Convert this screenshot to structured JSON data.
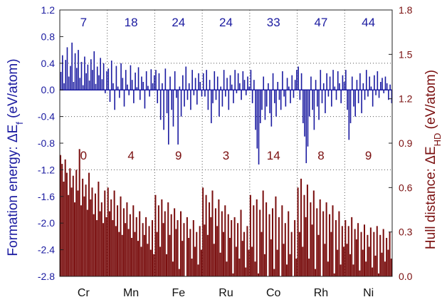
{
  "chart_data": {
    "type": "bar",
    "categories": [
      "Cr",
      "Mn",
      "Fe",
      "Ru",
      "Co",
      "Rh",
      "Ni"
    ],
    "top_counts": [
      "7",
      "18",
      "24",
      "24",
      "33",
      "47",
      "44"
    ],
    "bottom_counts": [
      "0",
      "4",
      "9",
      "3",
      "14",
      "8",
      "9"
    ],
    "left_axis": {
      "label_prefix": "Formation energy: ",
      "label_symbol": "ΔE",
      "label_sub": "f",
      "label_suffix": " (eV/atom)",
      "ylim": [
        -2.8,
        1.2
      ],
      "ticks": [
        "1.2",
        "0.8",
        "0.4",
        "0.0",
        "-0.4",
        "-0.8",
        "-1.2",
        "-1.6",
        "-2.0",
        "-2.4",
        "-2.8"
      ],
      "color": "#1a1aa0"
    },
    "right_axis": {
      "label_prefix": "Hull distance: ",
      "label_symbol": "ΔE",
      "label_sub": "HD",
      "label_suffix": " (eV/atom)",
      "ylim": [
        0.0,
        1.8
      ],
      "ticks": [
        "1.8",
        "1.5",
        "1.2",
        "0.9",
        "0.6",
        "0.3",
        "0.0"
      ],
      "color": "#7a0f0f"
    },
    "series": [
      {
        "axis": "left",
        "color": "#1a1aa0",
        "values_by_category": {
          "Cr": [
            0.27,
            0.52,
            0.1,
            0.45,
            0.64,
            0.2,
            0.36,
            0.71,
            0.12,
            0.55,
            0.33,
            0.6,
            0.18,
            0.42,
            0.07,
            0.5,
            0.25,
            0.38,
            0.14,
            0.46,
            0.3,
            0.58,
            0.09,
            0.35,
            0.22,
            0.48,
            0.16,
            0.4,
            -0.05,
            0.28
          ],
          "Mn": [
            0.32,
            -0.18,
            0.44,
            0.1,
            -0.3,
            0.36,
            0.05,
            -0.12,
            0.4,
            0.18,
            -0.25,
            0.3,
            0.08,
            -0.08,
            0.37,
            0.15,
            -0.2,
            0.26,
            0.04,
            0.34,
            -0.15,
            0.2,
            0.12,
            -0.28,
            0.28,
            0.06,
            -0.1,
            0.31,
            0.1,
            0.22
          ],
          "Fe": [
            0.3,
            -0.2,
            0.25,
            -0.45,
            0.1,
            -0.6,
            0.32,
            -0.35,
            -0.82,
            0.2,
            -0.3,
            -0.55,
            0.28,
            -0.12,
            -0.82,
            0.05,
            -0.4,
            0.22,
            -0.25,
            0.35,
            -0.15,
            0.1,
            -0.3,
            0.3,
            -0.08,
            0.18,
            -0.22,
            0.25,
            0.12,
            -0.1
          ],
          "Ru": [
            0.25,
            -0.1,
            0.3,
            -0.3,
            0.15,
            -0.5,
            -0.2,
            0.28,
            -0.15,
            0.2,
            -0.4,
            0.05,
            -0.25,
            0.3,
            -0.1,
            0.18,
            -0.3,
            0.22,
            0.08,
            -0.2,
            0.3,
            -0.05,
            0.25,
            0.1,
            -0.15,
            0.28,
            0.15,
            -0.08,
            0.2,
            0.05
          ],
          "Co": [
            0.3,
            -0.2,
            0.15,
            -0.6,
            -0.88,
            -1.12,
            -0.5,
            -0.3,
            0.2,
            -0.45,
            -0.25,
            0.1,
            -0.35,
            -0.55,
            0.25,
            -0.2,
            -0.4,
            0.12,
            -0.15,
            -0.3,
            0.28,
            -0.1,
            -0.25,
            0.18,
            0.05,
            -0.2,
            0.22,
            -0.12,
            0.15,
            0.3
          ],
          "Rh": [
            0.35,
            -0.15,
            0.25,
            -0.5,
            -0.7,
            -1.1,
            -0.85,
            -0.4,
            0.2,
            -0.3,
            -0.6,
            0.15,
            -0.25,
            -0.45,
            0.3,
            -0.2,
            0.1,
            -0.35,
            0.25,
            -0.1,
            0.2,
            -0.25,
            0.3,
            0.05,
            -0.15,
            0.28,
            0.1,
            -0.2,
            0.22,
            0.12
          ],
          "Ni": [
            0.3,
            -0.3,
            -0.75,
            -0.5,
            0.2,
            -0.25,
            -0.4,
            0.15,
            -0.2,
            0.25,
            -0.35,
            0.1,
            -0.15,
            0.3,
            -0.1,
            0.2,
            0.05,
            -0.25,
            0.22,
            -0.08,
            0.28,
            -0.12,
            0.12,
            0.18,
            -0.05,
            0.2,
            0.1,
            -0.15,
            0.08,
            -0.2
          ]
        }
      },
      {
        "axis": "right",
        "color": "#7a0f0f",
        "values_by_category": {
          "Cr": [
            0.82,
            0.76,
            0.64,
            0.79,
            0.7,
            0.55,
            0.73,
            0.6,
            0.68,
            0.5,
            0.72,
            0.58,
            0.86,
            0.48,
            0.66,
            0.54,
            0.62,
            0.45,
            0.7,
            0.52,
            0.6,
            0.42,
            0.56,
            0.38,
            0.64,
            0.44,
            0.5,
            0.36,
            0.58,
            0.4
          ],
          "Mn": [
            0.6,
            0.44,
            0.52,
            0.38,
            0.58,
            0.34,
            0.48,
            0.3,
            0.54,
            0.28,
            0.46,
            0.36,
            0.5,
            0.32,
            0.42,
            0.26,
            0.48,
            0.3,
            0.4,
            0.24,
            0.44,
            0.2,
            0.36,
            0.28,
            0.4,
            0.22,
            0.34,
            0.18,
            0.38,
            0.15
          ],
          "Fe": [
            0.55,
            0.3,
            0.48,
            0.2,
            0.52,
            0.36,
            0.44,
            0.15,
            0.5,
            0.28,
            0.42,
            0.1,
            0.46,
            0.32,
            0.38,
            0.05,
            0.44,
            0.24,
            0.36,
            0.0,
            0.4,
            0.26,
            0.32,
            0.12,
            0.38,
            0.2,
            0.3,
            0.08,
            0.34,
            0.18
          ],
          "Ru": [
            0.6,
            0.35,
            0.55,
            0.28,
            0.5,
            0.4,
            0.58,
            0.22,
            0.46,
            0.34,
            0.52,
            0.16,
            0.44,
            0.3,
            0.48,
            0.1,
            0.42,
            0.26,
            0.38,
            0.02,
            0.4,
            0.2,
            0.36,
            0.12,
            0.45,
            0.24,
            0.3,
            0.06,
            0.34,
            0.18
          ],
          "Co": [
            0.55,
            0.2,
            0.48,
            0.1,
            0.52,
            0.02,
            0.45,
            0.3,
            0.58,
            0.15,
            0.5,
            0.0,
            0.42,
            0.25,
            0.46,
            0.05,
            0.54,
            0.18,
            0.4,
            0.0,
            0.48,
            0.22,
            0.36,
            0.08,
            0.44,
            0.15,
            0.3,
            0.0,
            0.38,
            0.12
          ],
          "Rh": [
            0.6,
            0.3,
            0.66,
            0.2,
            0.55,
            0.4,
            0.62,
            0.12,
            0.5,
            0.35,
            0.58,
            0.05,
            0.46,
            0.28,
            0.52,
            0.0,
            0.44,
            0.22,
            0.5,
            0.1,
            0.42,
            0.3,
            0.48,
            0.02,
            0.38,
            0.18,
            0.44,
            0.08,
            0.34,
            0.2
          ],
          "Ni": [
            0.38,
            0.22,
            0.34,
            0.15,
            0.4,
            0.08,
            0.32,
            0.25,
            0.36,
            0.04,
            0.3,
            0.18,
            0.35,
            0.1,
            0.28,
            0.2,
            0.33,
            0.06,
            0.3,
            0.14,
            0.34,
            0.02,
            0.28,
            0.16,
            0.32,
            0.1,
            0.26,
            0.18,
            0.3,
            0.12
          ]
        }
      }
    ]
  }
}
